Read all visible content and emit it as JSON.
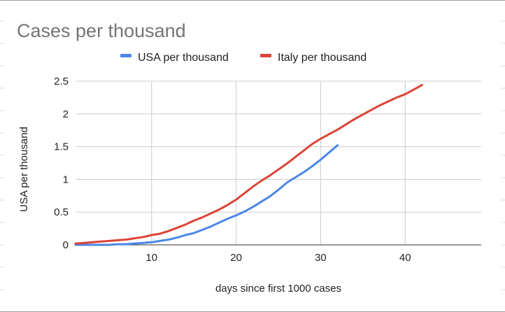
{
  "chart_data": {
    "type": "line",
    "title": "Cases per thousand",
    "xlabel": "days since first 1000 cases",
    "ylabel": "USA per thousand",
    "xlim": [
      1,
      49
    ],
    "ylim": [
      0,
      2.5
    ],
    "x_ticks": [
      10,
      20,
      30,
      40
    ],
    "y_ticks": [
      0,
      0.5,
      1,
      1.5,
      2,
      2.5
    ],
    "grid": true,
    "legend_position": "top",
    "series": [
      {
        "name": "USA per thousand",
        "color": "#4a86e8",
        "x": [
          1,
          2,
          3,
          4,
          5,
          6,
          7,
          8,
          9,
          10,
          11,
          12,
          13,
          14,
          15,
          16,
          17,
          18,
          19,
          20,
          21,
          22,
          23,
          24,
          25,
          26,
          27,
          28,
          29,
          30,
          31,
          32
        ],
        "y": [
          0.0,
          0.0,
          0.0,
          0.0,
          0.0,
          0.01,
          0.01,
          0.02,
          0.03,
          0.04,
          0.06,
          0.08,
          0.11,
          0.15,
          0.18,
          0.23,
          0.28,
          0.34,
          0.4,
          0.45,
          0.51,
          0.58,
          0.66,
          0.74,
          0.84,
          0.95,
          1.03,
          1.11,
          1.2,
          1.3,
          1.41,
          1.52
        ]
      },
      {
        "name": "Italy per thousand",
        "color": "#db4437",
        "x": [
          1,
          2,
          3,
          4,
          5,
          6,
          7,
          8,
          9,
          10,
          11,
          12,
          13,
          14,
          15,
          16,
          17,
          18,
          19,
          20,
          21,
          22,
          23,
          24,
          25,
          26,
          27,
          28,
          29,
          30,
          31,
          32,
          33,
          34,
          35,
          36,
          37,
          38,
          39,
          40,
          41,
          42
        ],
        "y": [
          0.02,
          0.03,
          0.04,
          0.05,
          0.06,
          0.07,
          0.08,
          0.1,
          0.12,
          0.15,
          0.17,
          0.21,
          0.26,
          0.31,
          0.37,
          0.42,
          0.48,
          0.54,
          0.61,
          0.69,
          0.79,
          0.89,
          0.98,
          1.06,
          1.15,
          1.24,
          1.34,
          1.44,
          1.54,
          1.62,
          1.69,
          1.76,
          1.84,
          1.92,
          1.99,
          2.06,
          2.13,
          2.19,
          2.25,
          2.3,
          2.37,
          2.44
        ]
      }
    ]
  }
}
